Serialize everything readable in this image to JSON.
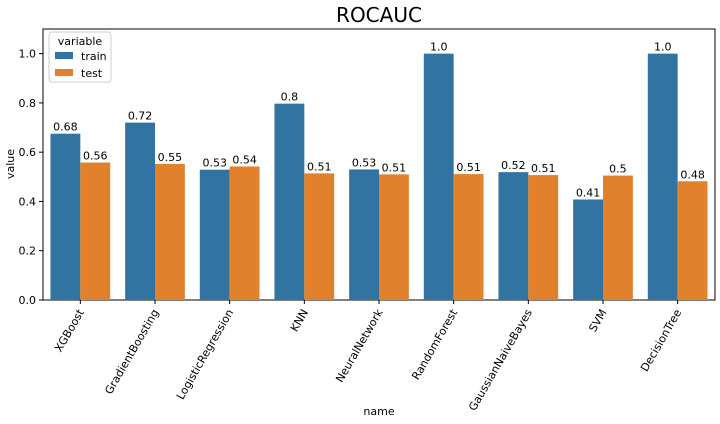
{
  "chart_data": {
    "type": "bar",
    "title": "ROCAUC",
    "xlabel": "name",
    "ylabel": "value",
    "categories": [
      "XGBoost",
      "GradientBoosting",
      "LogisticRegression",
      "KNN",
      "NeuralNetwork",
      "RandomForest",
      "GaussianNaiveBayes",
      "SVM",
      "DecisionTree"
    ],
    "series": [
      {
        "name": "train",
        "color": "#3274a1",
        "values": [
          0.675,
          0.72,
          0.529,
          0.797,
          0.53,
          1.0,
          0.519,
          0.408,
          1.0
        ],
        "labels": [
          "0.68",
          "0.72",
          "0.53",
          "0.8",
          "0.53",
          "1.0",
          "0.52",
          "0.41",
          "1.0"
        ]
      },
      {
        "name": "test",
        "color": "#e1812c",
        "values": [
          0.558,
          0.552,
          0.542,
          0.514,
          0.51,
          0.511,
          0.507,
          0.505,
          0.482
        ],
        "labels": [
          "0.56",
          "0.55",
          "0.54",
          "0.51",
          "0.51",
          "0.51",
          "0.51",
          "0.5",
          "0.48"
        ]
      }
    ],
    "ylim": [
      0,
      1.1
    ],
    "yticks": [
      0.0,
      0.2,
      0.4,
      0.6,
      0.8,
      1.0
    ],
    "ytick_labels": [
      "0.0",
      "0.2",
      "0.4",
      "0.6",
      "0.8",
      "1.0"
    ],
    "grid": false,
    "legend": {
      "title": "variable",
      "position": "top-left"
    }
  }
}
